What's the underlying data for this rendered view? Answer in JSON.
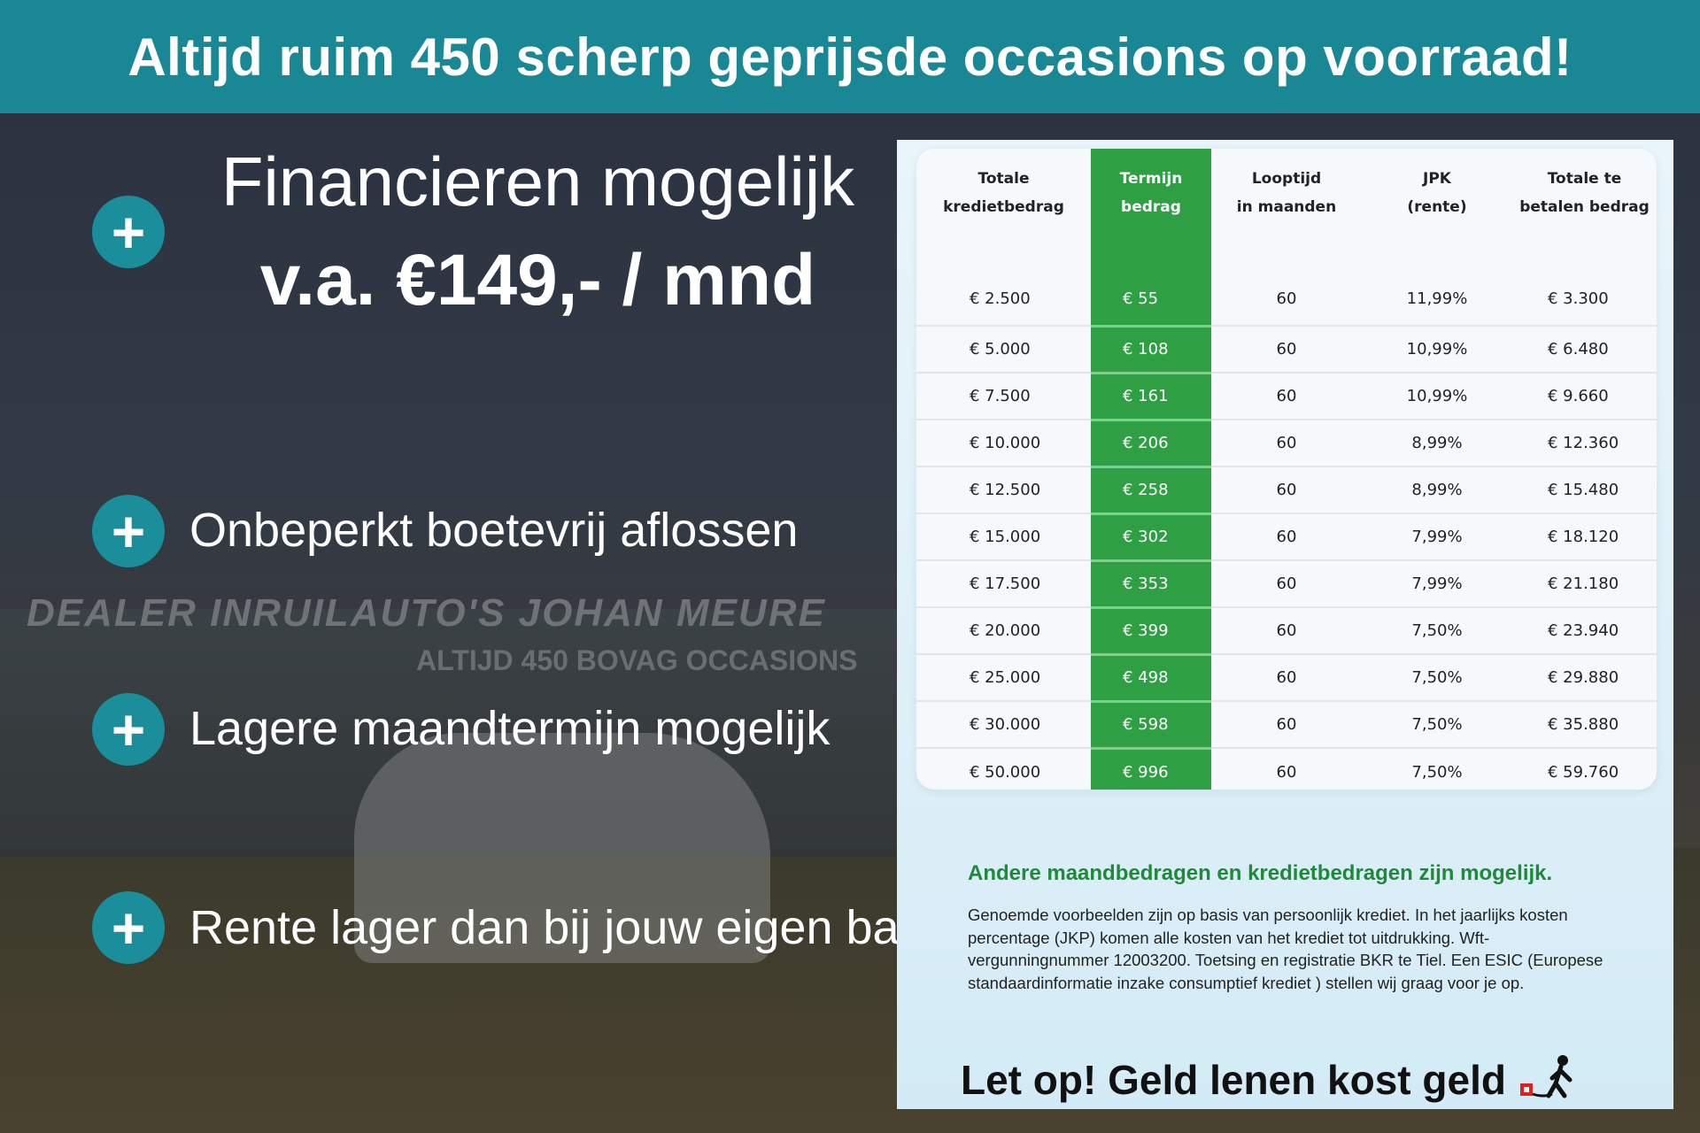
{
  "header": {
    "title": "Altijd ruim 450 scherp geprijsde occasions op voorraad!"
  },
  "background": {
    "sign_text": "DEALER INRUILAUTO'S JOHAN MEURE",
    "sign_text_2": "ALTIJD 450 BOVAG OCCASIONS"
  },
  "left": {
    "title": "Financieren mogelijk",
    "price": "v.a. €149,- / mnd",
    "bullets": [
      "Onbeperkt boetevrij aflossen",
      "Lagere maandtermijn mogelijk",
      "Rente lager dan bij jouw eigen bank"
    ],
    "icon": "plus-circle-icon"
  },
  "table": {
    "headers": [
      "Totale\nkredietbedrag",
      "Termijn\nbedrag",
      "Looptijd\nin maanden",
      "JPK\n(rente)",
      "Totale te\nbetalen bedrag"
    ],
    "rows": [
      [
        "€ 2.500",
        "€ 55",
        "60",
        "11,99%",
        "€ 3.300"
      ],
      [
        "€ 5.000",
        "€ 108",
        "60",
        "10,99%",
        "€ 6.480"
      ],
      [
        "€ 7.500",
        "€ 161",
        "60",
        "10,99%",
        "€ 9.660"
      ],
      [
        "€ 10.000",
        "€ 206",
        "60",
        "8,99%",
        "€ 12.360"
      ],
      [
        "€ 12.500",
        "€ 258",
        "60",
        "8,99%",
        "€ 15.480"
      ],
      [
        "€ 15.000",
        "€ 302",
        "60",
        "7,99%",
        "€ 18.120"
      ],
      [
        "€ 17.500",
        "€ 353",
        "60",
        "7,99%",
        "€ 21.180"
      ],
      [
        "€ 20.000",
        "€ 399",
        "60",
        "7,50%",
        "€ 23.940"
      ],
      [
        "€ 25.000",
        "€ 498",
        "60",
        "7,50%",
        "€ 29.880"
      ],
      [
        "€ 30.000",
        "€ 598",
        "60",
        "7,50%",
        "€ 35.880"
      ],
      [
        "€ 50.000",
        "€ 996",
        "60",
        "7,50%",
        "€ 59.760"
      ]
    ],
    "highlight_color": "#2ea043"
  },
  "note": {
    "heading": "Andere maandbedragen en kredietbedragen zijn mogelijk.",
    "body": "Genoemde voorbeelden zijn op basis van persoonlijk krediet. In het jaarlijks kosten percentage (JKP) komen alle kosten van het krediet tot uitdrukking. Wft-vergunningnummer 12003200. Toetsing en registratie BKR te Tiel. Een ESIC (Europese standaardinformatie inzake consumptief krediet ) stellen wij graag voor je op.",
    "warning": "Let op! Geld lenen kost geld",
    "warning_icon": "walking-person-ball-chain-icon"
  },
  "colors": {
    "header": "#198894",
    "accent_green": "#1f8a3a"
  }
}
